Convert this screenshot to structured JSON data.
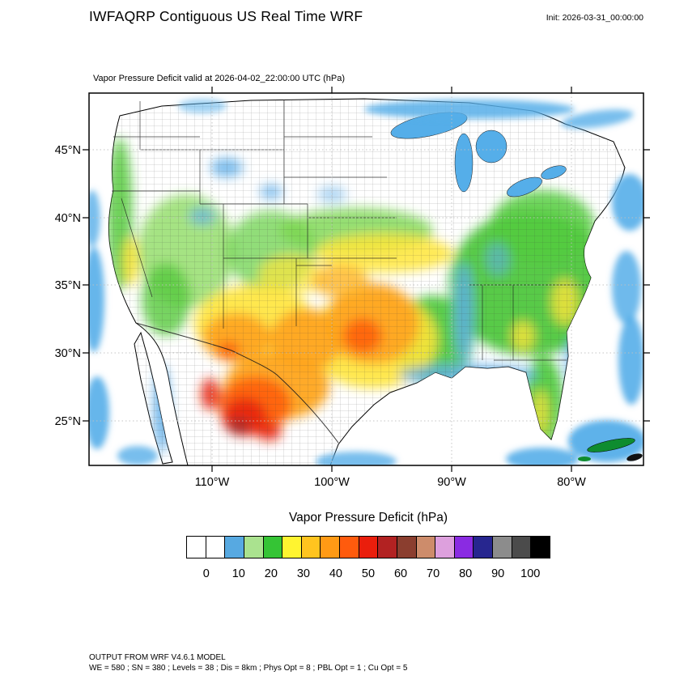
{
  "header": {
    "title": "IWFAQRP Contiguous US Real Time WRF",
    "init_label": "Init: 2026-03-31_00:00:00"
  },
  "map": {
    "subtitle": "Vapor Pressure Deficit valid at 2026-04-02_22:00:00 UTC   (hPa)",
    "lat_ticks": [
      "45°N",
      "40°N",
      "35°N",
      "30°N",
      "25°N"
    ],
    "lon_ticks": [
      "110°W",
      "100°W",
      "90°W",
      "80°W"
    ]
  },
  "colorbar": {
    "title": "Vapor Pressure Deficit  (hPa)",
    "units": "hPa",
    "tick_labels": [
      "0",
      "10",
      "20",
      "30",
      "40",
      "50",
      "60",
      "70",
      "80",
      "90",
      "100"
    ],
    "colors": [
      "#FFFFFF",
      "#FFFFFF",
      "#57A9E1",
      "#AAE28F",
      "#35C435",
      "#FFF430",
      "#FFC41F",
      "#FF9A15",
      "#FF5B0D",
      "#EA1E0C",
      "#B22222",
      "#8B3E2F",
      "#CD8C6B",
      "#DDA0DD",
      "#8A2BE2",
      "#27268F",
      "#8C8C8C",
      "#4B4B4B",
      "#000000"
    ]
  },
  "footer": {
    "line1": "OUTPUT FROM WRF V4.6.1 MODEL",
    "line2": "WE = 580 ; SN = 380 ; Levels = 38 ; Dis = 8km ; Phys Opt = 8 ; PBL Opt = 1 ; Cu Opt = 5"
  }
}
